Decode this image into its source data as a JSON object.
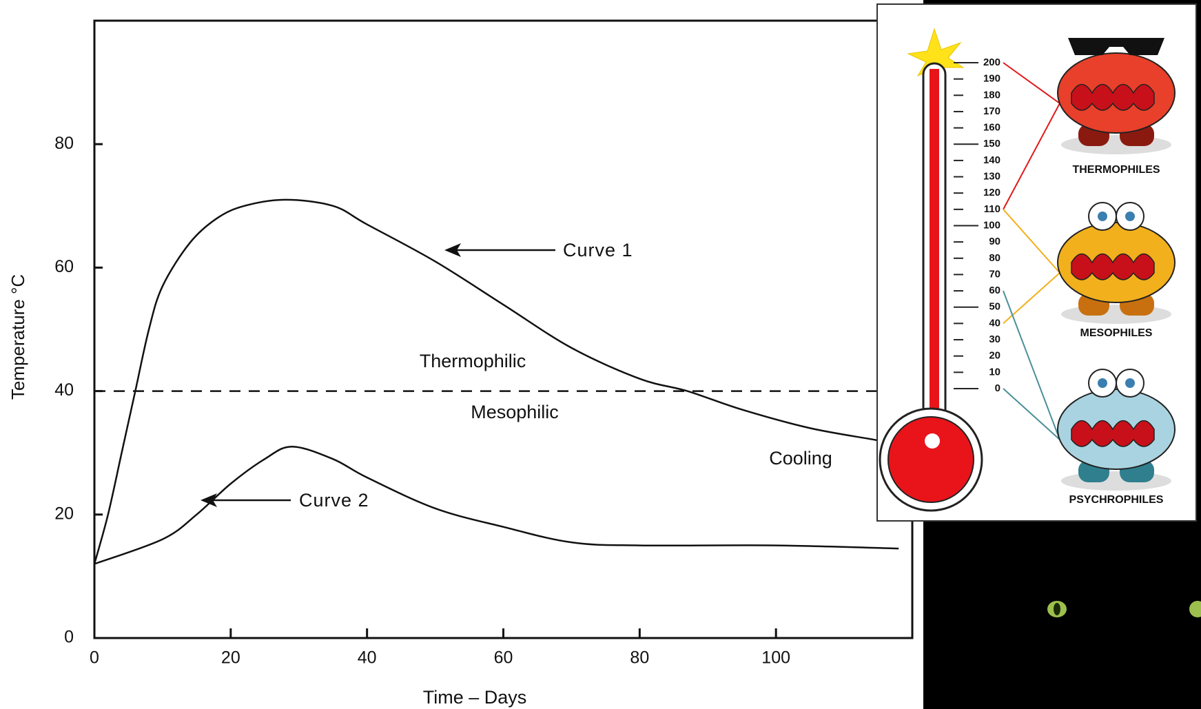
{
  "chart_data": {
    "type": "line",
    "xlabel": "Time – Days",
    "ylabel": "Temperature °C",
    "xlim": [
      0,
      120
    ],
    "ylim": [
      0,
      100
    ],
    "xticks": [
      0,
      20,
      40,
      60,
      80,
      100
    ],
    "yticks": [
      0,
      20,
      40,
      60,
      80
    ],
    "series": [
      {
        "name": "Curve 1",
        "color": "#111111",
        "x": [
          0,
          2,
          4,
          6,
          8,
          10,
          14,
          18,
          22,
          28,
          35,
          40,
          50,
          60,
          70,
          80,
          87,
          95,
          105,
          115,
          119
        ],
        "values": [
          12,
          20,
          30,
          40,
          50,
          57,
          64,
          68,
          70,
          71,
          70,
          67,
          61,
          54,
          47,
          42,
          40,
          37,
          34,
          32,
          31
        ]
      },
      {
        "name": "Curve 2",
        "color": "#111111",
        "x": [
          0,
          10,
          15,
          20,
          25,
          29,
          35,
          40,
          50,
          60,
          70,
          80,
          100,
          118
        ],
        "values": [
          12,
          16,
          20,
          25,
          29,
          31,
          29,
          26,
          21,
          18,
          15.5,
          15,
          15,
          14.5
        ]
      }
    ],
    "threshold": 40,
    "annotations": [
      "Thermophilic",
      "Mesophilic",
      "Cooling"
    ]
  },
  "illustration": {
    "scale": [
      0,
      10,
      20,
      30,
      40,
      50,
      60,
      70,
      80,
      90,
      100,
      110,
      120,
      130,
      140,
      150,
      160,
      170,
      180,
      190,
      200
    ],
    "groups": [
      {
        "name": "THERMOPHILES",
        "range": [
          110,
          200
        ],
        "color": "#e8402a"
      },
      {
        "name": "MESOPHILES",
        "range": [
          40,
          110
        ],
        "color": "#f2b01c"
      },
      {
        "name": "PSYCHROPHILES",
        "range": [
          0,
          60
        ],
        "color": "#a9d3e0"
      }
    ]
  }
}
